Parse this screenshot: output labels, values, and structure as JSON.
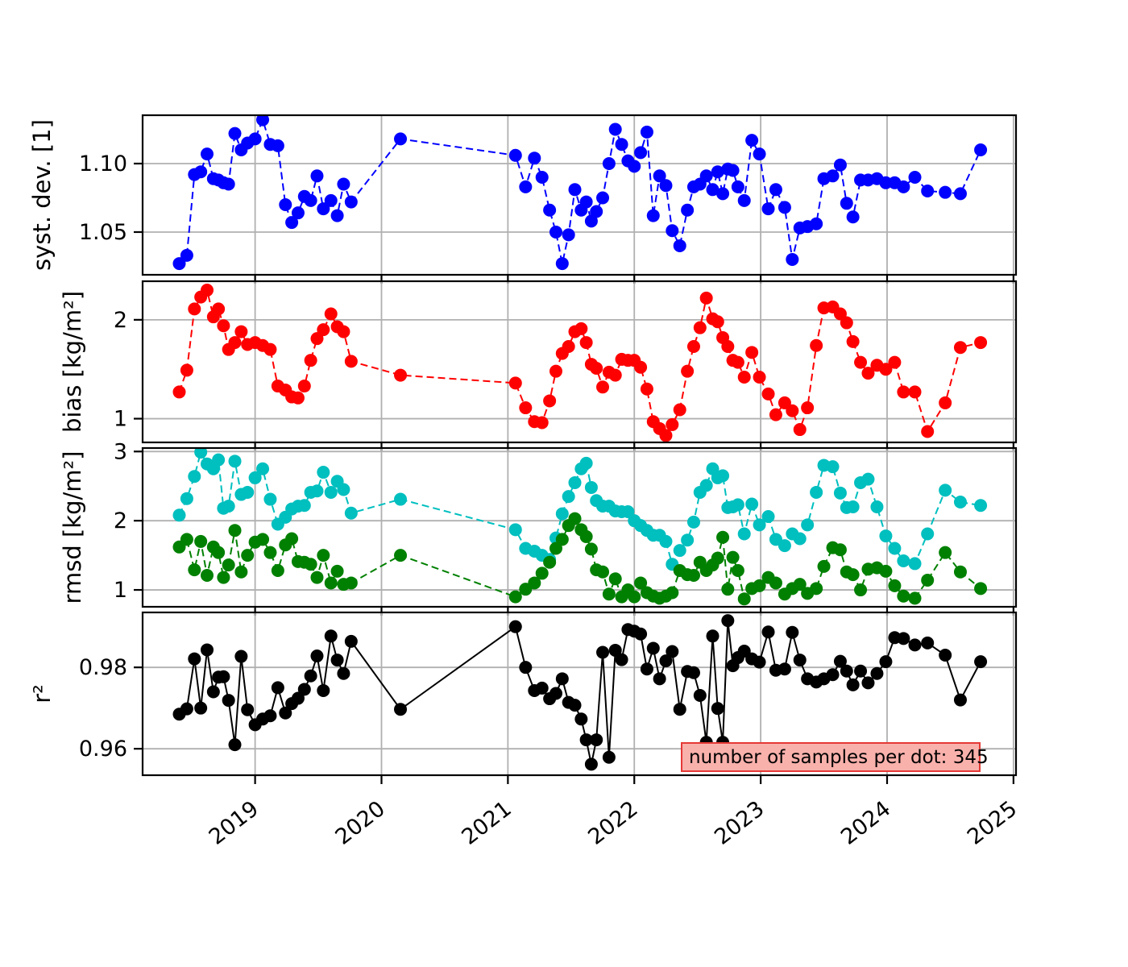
{
  "annotation": {
    "text": "number of samples per dot: 345",
    "bg_color": "#f9b1ac",
    "border_color": "#e53935"
  },
  "chart_data": {
    "type": "line",
    "title": "",
    "xlabel": "",
    "grid": true,
    "grid_color": "#b0b0b0",
    "legend_position": "none",
    "xlim": [
      2018.11,
      2025.02
    ],
    "xticks": [
      2019,
      2020,
      2021,
      2022,
      2023,
      2024,
      2025
    ],
    "xtick_labels": [
      "2019",
      "2020",
      "2021",
      "2022",
      "2023",
      "2024",
      "2025"
    ],
    "x": [
      2018.4,
      2018.46,
      2018.52,
      2018.57,
      2018.62,
      2018.67,
      2018.71,
      2018.75,
      2018.79,
      2018.84,
      2018.89,
      2018.94,
      2019.0,
      2019.06,
      2019.12,
      2019.18,
      2019.24,
      2019.29,
      2019.34,
      2019.39,
      2019.44,
      2019.49,
      2019.54,
      2019.6,
      2019.65,
      2019.7,
      2019.76,
      2020.15,
      2021.06,
      2021.14,
      2021.21,
      2021.27,
      2021.33,
      2021.38,
      2021.43,
      2021.48,
      2021.53,
      2021.58,
      2021.62,
      2021.66,
      2021.7,
      2021.75,
      2021.8,
      2021.85,
      2021.9,
      2021.95,
      2022.0,
      2022.05,
      2022.1,
      2022.15,
      2022.2,
      2022.25,
      2022.3,
      2022.36,
      2022.42,
      2022.47,
      2022.52,
      2022.57,
      2022.62,
      2022.66,
      2022.7,
      2022.74,
      2022.78,
      2022.82,
      2022.87,
      2022.93,
      2022.99,
      2023.06,
      2023.12,
      2023.19,
      2023.25,
      2023.31,
      2023.37,
      2023.44,
      2023.5,
      2023.57,
      2023.63,
      2023.68,
      2023.73,
      2023.79,
      2023.85,
      2023.92,
      2023.99,
      2024.06,
      2024.13,
      2024.22,
      2024.32,
      2024.46,
      2024.58,
      2024.74
    ],
    "panels": [
      {
        "name": "systdev",
        "ylabel": "syst. dev. [1]",
        "yticks": [
          1.05,
          1.1
        ],
        "ytick_labels": [
          "1.05",
          "1.10"
        ],
        "ylim": [
          1.0188,
          1.1353
        ],
        "series": [
          {
            "name": "syst-dev",
            "color": "#0000ff",
            "linestyle": "dashed",
            "values": [
              1.027,
              1.033,
              1.092,
              1.094,
              1.107,
              1.089,
              1.088,
              1.086,
              1.085,
              1.122,
              1.11,
              1.115,
              1.118,
              1.132,
              1.114,
              1.113,
              1.07,
              1.057,
              1.064,
              1.076,
              1.073,
              1.091,
              1.067,
              1.073,
              1.062,
              1.085,
              1.072,
              1.118,
              1.106,
              1.083,
              1.104,
              1.09,
              1.066,
              1.05,
              1.027,
              1.048,
              1.081,
              1.066,
              1.072,
              1.058,
              1.065,
              1.075,
              1.1,
              1.125,
              1.114,
              1.102,
              1.098,
              1.108,
              1.123,
              1.062,
              1.091,
              1.084,
              1.051,
              1.04,
              1.066,
              1.083,
              1.085,
              1.091,
              1.081,
              1.094,
              1.078,
              1.096,
              1.095,
              1.083,
              1.073,
              1.117,
              1.107,
              1.067,
              1.081,
              1.068,
              1.03,
              1.053,
              1.054,
              1.056,
              1.089,
              1.091,
              1.099,
              1.071,
              1.061,
              1.088,
              1.088,
              1.089,
              1.086,
              1.086,
              1.083,
              1.09,
              1.08,
              1.079,
              1.078,
              1.11
            ]
          }
        ]
      },
      {
        "name": "bias",
        "ylabel": "bias [kg/m²]",
        "yticks": [
          1,
          2
        ],
        "ytick_labels": [
          "1",
          "2"
        ],
        "ylim": [
          0.76,
          2.39
        ],
        "series": [
          {
            "name": "bias",
            "color": "#ff0000",
            "linestyle": "dashed",
            "values": [
              1.27,
              1.49,
              2.11,
              2.23,
              2.3,
              2.03,
              2.11,
              1.94,
              1.7,
              1.77,
              1.88,
              1.75,
              1.77,
              1.74,
              1.7,
              1.33,
              1.29,
              1.22,
              1.21,
              1.33,
              1.59,
              1.81,
              1.9,
              2.06,
              1.93,
              1.88,
              1.58,
              1.44,
              1.36,
              1.11,
              0.97,
              0.96,
              1.18,
              1.48,
              1.66,
              1.73,
              1.88,
              1.91,
              1.77,
              1.55,
              1.51,
              1.32,
              1.47,
              1.44,
              1.6,
              1.59,
              1.59,
              1.52,
              1.3,
              0.97,
              0.9,
              0.83,
              0.94,
              1.09,
              1.48,
              1.73,
              1.92,
              2.22,
              2.01,
              1.98,
              1.82,
              1.73,
              1.59,
              1.57,
              1.42,
              1.67,
              1.42,
              1.25,
              1.04,
              1.16,
              1.08,
              0.89,
              1.11,
              1.74,
              2.12,
              2.13,
              2.06,
              1.97,
              1.78,
              1.57,
              1.46,
              1.54,
              1.5,
              1.57,
              1.27,
              1.27,
              0.87,
              1.16,
              1.72,
              1.77
            ]
          }
        ]
      },
      {
        "name": "rmsd",
        "ylabel": "rmsd [kg/m²]",
        "yticks": [
          1,
          2,
          3
        ],
        "ytick_labels": [
          "1",
          "2",
          "3"
        ],
        "ylim": [
          0.756,
          3.05
        ],
        "series": [
          {
            "name": "rmsd-cyan",
            "color": "#00bfbf",
            "linestyle": "dashed",
            "values": [
              2.08,
              2.32,
              2.64,
              2.99,
              2.82,
              2.75,
              2.88,
              2.18,
              2.21,
              2.86,
              2.38,
              2.41,
              2.62,
              2.75,
              2.31,
              1.95,
              2.05,
              2.17,
              2.21,
              2.22,
              2.41,
              2.43,
              2.7,
              2.41,
              2.57,
              2.45,
              2.11,
              2.31,
              1.87,
              1.6,
              1.56,
              1.5,
              1.44,
              1.75,
              2.1,
              2.35,
              2.55,
              2.75,
              2.83,
              2.48,
              2.29,
              2.21,
              2.21,
              2.14,
              2.13,
              2.13,
              2.0,
              1.93,
              1.86,
              1.79,
              1.79,
              1.7,
              1.37,
              1.57,
              1.72,
              1.98,
              2.41,
              2.51,
              2.75,
              2.62,
              2.65,
              2.19,
              2.2,
              2.23,
              1.81,
              2.24,
              1.94,
              2.06,
              1.73,
              1.64,
              1.81,
              1.74,
              1.94,
              2.41,
              2.8,
              2.78,
              2.4,
              2.19,
              2.2,
              2.55,
              2.6,
              2.2,
              1.78,
              1.6,
              1.42,
              1.38,
              1.81,
              2.44,
              2.27,
              2.22
            ]
          },
          {
            "name": "rmsd-green",
            "color": "#008000",
            "linestyle": "dashed",
            "values": [
              1.62,
              1.73,
              1.29,
              1.7,
              1.21,
              1.62,
              1.54,
              1.18,
              1.36,
              1.86,
              1.26,
              1.5,
              1.69,
              1.73,
              1.54,
              1.28,
              1.65,
              1.74,
              1.41,
              1.4,
              1.37,
              1.18,
              1.5,
              1.1,
              1.27,
              1.08,
              1.1,
              1.5,
              0.9,
              1.01,
              1.1,
              1.24,
              1.4,
              1.6,
              1.73,
              1.93,
              2.03,
              1.87,
              1.77,
              1.59,
              1.29,
              1.26,
              0.94,
              1.16,
              0.9,
              1.0,
              0.9,
              1.1,
              0.96,
              0.91,
              0.88,
              0.91,
              0.96,
              1.28,
              1.22,
              1.21,
              1.4,
              1.28,
              1.36,
              1.46,
              1.76,
              1.01,
              1.47,
              1.28,
              0.87,
              1.02,
              1.06,
              1.18,
              1.1,
              0.94,
              1.02,
              1.08,
              0.95,
              1.02,
              1.34,
              1.61,
              1.58,
              1.26,
              1.22,
              1.0,
              1.3,
              1.32,
              1.27,
              1.06,
              0.91,
              0.88,
              1.14,
              1.54,
              1.26,
              1.02
            ]
          }
        ]
      },
      {
        "name": "r2",
        "ylabel": "r²",
        "yticks": [
          0.96,
          0.98
        ],
        "ytick_labels": [
          "0.96",
          "0.98"
        ],
        "ylim": [
          0.9535,
          0.9935
        ],
        "series": [
          {
            "name": "r-squared",
            "color": "#000000",
            "linestyle": "solid",
            "values": [
              0.9685,
              0.9698,
              0.9821,
              0.97,
              0.9843,
              0.974,
              0.9776,
              0.9777,
              0.9719,
              0.961,
              0.9827,
              0.9696,
              0.9659,
              0.9673,
              0.9681,
              0.975,
              0.9688,
              0.9711,
              0.9724,
              0.9746,
              0.9779,
              0.9828,
              0.9743,
              0.9877,
              0.9818,
              0.9785,
              0.9864,
              0.9697,
              0.99,
              0.98,
              0.9743,
              0.9749,
              0.9723,
              0.9736,
              0.9772,
              0.9714,
              0.9707,
              0.9673,
              0.9622,
              0.9562,
              0.9622,
              0.9837,
              0.9579,
              0.9842,
              0.9819,
              0.9893,
              0.9889,
              0.9882,
              0.9796,
              0.9847,
              0.9772,
              0.9816,
              0.9839,
              0.9697,
              0.979,
              0.9787,
              0.9731,
              0.9616,
              0.9877,
              0.9699,
              0.9616,
              0.9915,
              0.9804,
              0.9824,
              0.984,
              0.9821,
              0.9813,
              0.9887,
              0.9793,
              0.9796,
              0.9886,
              0.9818,
              0.9772,
              0.9764,
              0.9772,
              0.9782,
              0.9815,
              0.9791,
              0.9757,
              0.9791,
              0.9762,
              0.9785,
              0.9814,
              0.9873,
              0.9871,
              0.9855,
              0.986,
              0.983,
              0.972,
              0.9814
            ]
          }
        ]
      }
    ]
  }
}
